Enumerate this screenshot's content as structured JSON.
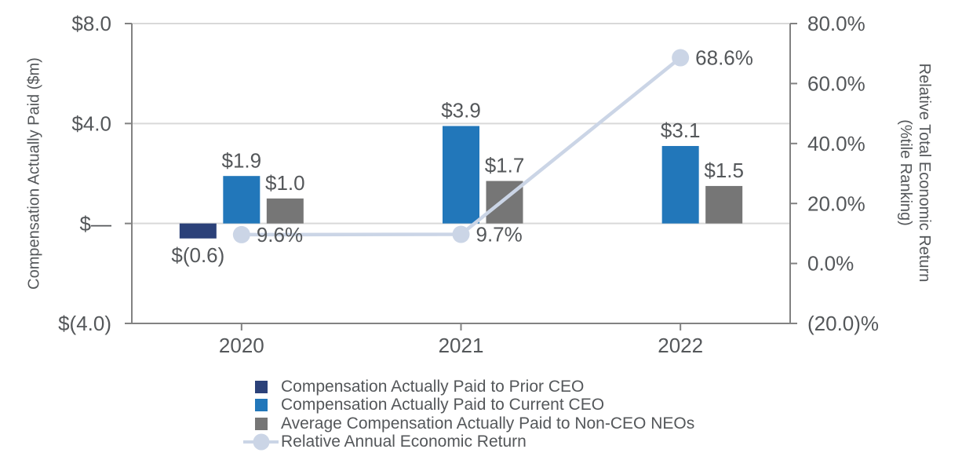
{
  "chart_data": {
    "type": "bar-line-combo",
    "categories": [
      "2020",
      "2021",
      "2022"
    ],
    "series": [
      {
        "key": "prior-ceo",
        "name": "Compensation Actually Paid to Prior CEO",
        "type": "bar",
        "axis": "left",
        "color": "#2b4179",
        "values": [
          -0.6,
          null,
          null
        ],
        "value_labels": [
          "$(0.6)",
          "",
          ""
        ]
      },
      {
        "key": "current-ceo",
        "name": "Compensation Actually Paid to Current CEO",
        "type": "bar",
        "axis": "left",
        "color": "#2277ba",
        "values": [
          1.9,
          3.9,
          3.1
        ],
        "value_labels": [
          "$1.9",
          "$3.9",
          "$3.1"
        ]
      },
      {
        "key": "non-ceo-neos",
        "name": "Average Compensation Actually Paid to Non-CEO NEOs",
        "type": "bar",
        "axis": "left",
        "color": "#767676",
        "values": [
          1.0,
          1.7,
          1.5
        ],
        "value_labels": [
          "$1.0",
          "$1.7",
          "$1.5"
        ]
      },
      {
        "key": "relative-annual-economic-return",
        "name": "Relative Annual Economic Return",
        "type": "line",
        "axis": "right",
        "color": "#cbd5e6",
        "values": [
          9.6,
          9.7,
          68.6
        ],
        "value_labels": [
          "9.6%",
          "9.7%",
          "68.6%"
        ]
      }
    ],
    "left_axis": {
      "title": "Compensation Actually Paid ($m)",
      "min": -4,
      "max": 8,
      "ticks": [
        {
          "value": 8,
          "label": "$8.0"
        },
        {
          "value": 4,
          "label": "$4.0"
        },
        {
          "value": 0,
          "label": "$—"
        },
        {
          "value": -4,
          "label": "$(4.0)"
        }
      ]
    },
    "right_axis": {
      "title_line1": "Relative Total Economic Return",
      "title_line2": "(%tile Ranking)",
      "min": -20,
      "max": 80,
      "ticks": [
        {
          "value": 80,
          "label": "80.0%"
        },
        {
          "value": 60,
          "label": "60.0%"
        },
        {
          "value": 40,
          "label": "40.0%"
        },
        {
          "value": 20,
          "label": "20.0%"
        },
        {
          "value": 0,
          "label": "0.0%"
        },
        {
          "value": -20,
          "label": "(20.0)%"
        }
      ]
    },
    "gridline_values_left": [
      8,
      4,
      0
    ],
    "legend_position": "bottom",
    "grid": "horizontal-only"
  },
  "style": {
    "text_color": "#54575a",
    "axis_color": "#828282",
    "gridline_color": "#d9d9d9",
    "background": "#ffffff"
  }
}
